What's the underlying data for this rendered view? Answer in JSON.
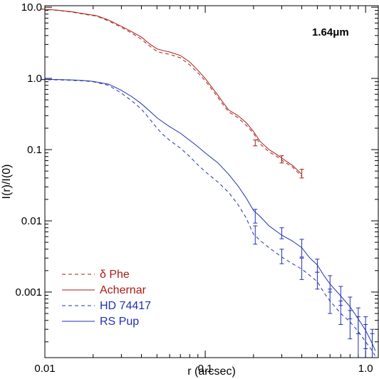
{
  "chart_data": {
    "type": "line",
    "title": "",
    "xlabel": "r (arcsec)",
    "ylabel": "I(r)/I(0)",
    "xscale": "log",
    "yscale": "log",
    "xlim": [
      0.01,
      1.2
    ],
    "ylim": [
      0.00012,
      10.5
    ],
    "grid": false,
    "annotation": "1.64μm",
    "x_tick_labels": [
      {
        "value": 0.01,
        "label": "0.01"
      },
      {
        "value": 0.1,
        "label": "0.1"
      },
      {
        "value": 1.0,
        "label": "1.0"
      }
    ],
    "y_tick_labels": [
      {
        "value": 10,
        "label": "10.0"
      },
      {
        "value": 1,
        "label": "1.0"
      },
      {
        "value": 0.1,
        "label": "0.1"
      },
      {
        "value": 0.01,
        "label": "0.01"
      },
      {
        "value": 0.001,
        "label": "0.001"
      }
    ],
    "legend": {
      "placement": "bottom-left",
      "entries": [
        "δ Phe",
        "Achernar",
        "HD 74417",
        "RS Pup"
      ]
    },
    "colors": {
      "red": "#a81c14",
      "blue": "#2030b0"
    },
    "series": [
      {
        "name": "δ Phe",
        "color": "#a81c14",
        "dash": true,
        "points": [
          [
            0.0095,
            9.4
          ],
          [
            0.012,
            9.05
          ],
          [
            0.015,
            8.5
          ],
          [
            0.018,
            7.9
          ],
          [
            0.021,
            7.5
          ],
          [
            0.025,
            6.4
          ],
          [
            0.03,
            5.2
          ],
          [
            0.035,
            4.3
          ],
          [
            0.04,
            3.55
          ],
          [
            0.045,
            2.85
          ],
          [
            0.05,
            2.4
          ],
          [
            0.055,
            2.25
          ],
          [
            0.06,
            2.18
          ],
          [
            0.07,
            1.95
          ],
          [
            0.08,
            1.55
          ],
          [
            0.09,
            1.2
          ],
          [
            0.1,
            0.93
          ],
          [
            0.11,
            0.7
          ],
          [
            0.12,
            0.54
          ],
          [
            0.13,
            0.42
          ],
          [
            0.14,
            0.34
          ],
          [
            0.16,
            0.28
          ],
          [
            0.18,
            0.22
          ],
          [
            0.2,
            0.17
          ],
          [
            0.22,
            0.12
          ],
          [
            0.25,
            0.093
          ],
          [
            0.28,
            0.08
          ],
          [
            0.3,
            0.071
          ],
          [
            0.35,
            0.057
          ],
          [
            0.4,
            0.042
          ]
        ],
        "error_bars": [
          {
            "x": 0.205,
            "y": 0.125,
            "low": 0.113,
            "high": 0.137
          },
          {
            "x": 0.3,
            "y": 0.073,
            "low": 0.065,
            "high": 0.082
          },
          {
            "x": 0.4,
            "y": 0.046,
            "low": 0.04,
            "high": 0.053
          }
        ]
      },
      {
        "name": "Achernar",
        "color": "#a81c14",
        "dash": false,
        "points": [
          [
            0.0095,
            9.4
          ],
          [
            0.012,
            9.1
          ],
          [
            0.015,
            8.6
          ],
          [
            0.018,
            8.0
          ],
          [
            0.021,
            7.6
          ],
          [
            0.025,
            6.6
          ],
          [
            0.03,
            5.4
          ],
          [
            0.035,
            4.5
          ],
          [
            0.04,
            3.8
          ],
          [
            0.045,
            3.05
          ],
          [
            0.05,
            2.6
          ],
          [
            0.055,
            2.45
          ],
          [
            0.06,
            2.35
          ],
          [
            0.07,
            2.1
          ],
          [
            0.08,
            1.7
          ],
          [
            0.09,
            1.3
          ],
          [
            0.1,
            1.0
          ],
          [
            0.11,
            0.75
          ],
          [
            0.12,
            0.58
          ],
          [
            0.13,
            0.45
          ],
          [
            0.14,
            0.36
          ],
          [
            0.16,
            0.3
          ],
          [
            0.18,
            0.24
          ],
          [
            0.2,
            0.18
          ],
          [
            0.22,
            0.13
          ],
          [
            0.25,
            0.1
          ],
          [
            0.28,
            0.085
          ],
          [
            0.3,
            0.076
          ],
          [
            0.35,
            0.06
          ],
          [
            0.4,
            0.045
          ]
        ]
      },
      {
        "name": "HD 74417",
        "color": "#2030b0",
        "dash": true,
        "points": [
          [
            0.0095,
            0.96
          ],
          [
            0.012,
            0.955
          ],
          [
            0.015,
            0.94
          ],
          [
            0.018,
            0.92
          ],
          [
            0.02,
            0.9
          ],
          [
            0.025,
            0.8
          ],
          [
            0.03,
            0.62
          ],
          [
            0.035,
            0.48
          ],
          [
            0.04,
            0.37
          ],
          [
            0.045,
            0.27
          ],
          [
            0.05,
            0.2
          ],
          [
            0.055,
            0.16
          ],
          [
            0.06,
            0.135
          ],
          [
            0.07,
            0.105
          ],
          [
            0.08,
            0.08
          ],
          [
            0.09,
            0.061
          ],
          [
            0.1,
            0.049
          ],
          [
            0.12,
            0.035
          ],
          [
            0.14,
            0.025
          ],
          [
            0.16,
            0.017
          ],
          [
            0.18,
            0.011
          ],
          [
            0.2,
            0.0065
          ],
          [
            0.22,
            0.0053
          ],
          [
            0.25,
            0.0042
          ],
          [
            0.3,
            0.0031
          ],
          [
            0.35,
            0.0025
          ],
          [
            0.4,
            0.0021
          ],
          [
            0.45,
            0.0017
          ],
          [
            0.5,
            0.0014
          ],
          [
            0.55,
            0.00098
          ],
          [
            0.6,
            0.00075
          ],
          [
            0.7,
            0.0005
          ],
          [
            0.8,
            0.00038
          ],
          [
            0.9,
            0.00028
          ],
          [
            1.0,
            0.0002
          ],
          [
            1.1,
            0.00015
          ],
          [
            1.15,
            0.000125
          ]
        ],
        "error_bars": [
          {
            "x": 0.205,
            "y": 0.0065,
            "low": 0.0047,
            "high": 0.0085
          },
          {
            "x": 0.3,
            "y": 0.0032,
            "low": 0.0025,
            "high": 0.004
          },
          {
            "x": 0.4,
            "y": 0.0021,
            "low": 0.0015,
            "high": 0.003
          },
          {
            "x": 0.5,
            "y": 0.00145,
            "low": 0.0011,
            "high": 0.0019
          },
          {
            "x": 0.6,
            "y": 0.00075,
            "low": 0.0005,
            "high": 0.0011
          },
          {
            "x": 0.7,
            "y": 0.0005,
            "low": 0.00035,
            "high": 0.00075
          },
          {
            "x": 0.8,
            "y": 0.00037,
            "low": 0.00022,
            "high": 0.00055
          },
          {
            "x": 0.9,
            "y": 0.00028,
            "low": 0.00012,
            "high": 0.00045
          },
          {
            "x": 1.0,
            "y": 0.0002,
            "low": 0.00012,
            "high": 0.00035
          },
          {
            "x": 1.1,
            "y": 0.00015,
            "low": 0.00012,
            "high": 0.00026
          }
        ]
      },
      {
        "name": "RS Pup",
        "color": "#2030b0",
        "dash": false,
        "points": [
          [
            0.0095,
            0.97
          ],
          [
            0.012,
            0.965
          ],
          [
            0.015,
            0.95
          ],
          [
            0.018,
            0.93
          ],
          [
            0.02,
            0.91
          ],
          [
            0.025,
            0.83
          ],
          [
            0.03,
            0.68
          ],
          [
            0.035,
            0.55
          ],
          [
            0.04,
            0.44
          ],
          [
            0.045,
            0.35
          ],
          [
            0.05,
            0.28
          ],
          [
            0.055,
            0.24
          ],
          [
            0.06,
            0.21
          ],
          [
            0.07,
            0.17
          ],
          [
            0.08,
            0.135
          ],
          [
            0.09,
            0.11
          ],
          [
            0.1,
            0.09
          ],
          [
            0.12,
            0.065
          ],
          [
            0.14,
            0.045
          ],
          [
            0.16,
            0.031
          ],
          [
            0.18,
            0.021
          ],
          [
            0.2,
            0.014
          ],
          [
            0.22,
            0.0115
          ],
          [
            0.25,
            0.0085
          ],
          [
            0.3,
            0.0063
          ],
          [
            0.35,
            0.0052
          ],
          [
            0.4,
            0.0042
          ],
          [
            0.45,
            0.003
          ],
          [
            0.5,
            0.0024
          ],
          [
            0.55,
            0.0017
          ],
          [
            0.6,
            0.0013
          ],
          [
            0.7,
            0.00088
          ],
          [
            0.8,
            0.00062
          ],
          [
            0.9,
            0.00042
          ],
          [
            1.0,
            0.00029
          ],
          [
            1.1,
            0.00019
          ],
          [
            1.15,
            0.00015
          ]
        ],
        "error_bars": [
          {
            "x": 0.205,
            "y": 0.0118,
            "low": 0.0093,
            "high": 0.0145
          },
          {
            "x": 0.3,
            "y": 0.0067,
            "low": 0.0056,
            "high": 0.008
          },
          {
            "x": 0.4,
            "y": 0.0042,
            "low": 0.0031,
            "high": 0.0055
          },
          {
            "x": 0.5,
            "y": 0.0024,
            "low": 0.0019,
            "high": 0.0029
          },
          {
            "x": 0.6,
            "y": 0.0013,
            "low": 0.001,
            "high": 0.0017
          },
          {
            "x": 0.7,
            "y": 0.00088,
            "low": 0.00065,
            "high": 0.0012
          },
          {
            "x": 0.8,
            "y": 0.00062,
            "low": 0.00042,
            "high": 0.00085
          },
          {
            "x": 0.9,
            "y": 0.00042,
            "low": 0.00026,
            "high": 0.0006
          },
          {
            "x": 1.0,
            "y": 0.00029,
            "low": 0.00016,
            "high": 0.00045
          },
          {
            "x": 1.1,
            "y": 0.00019,
            "low": 0.00012,
            "high": 0.0003
          }
        ]
      }
    ]
  }
}
